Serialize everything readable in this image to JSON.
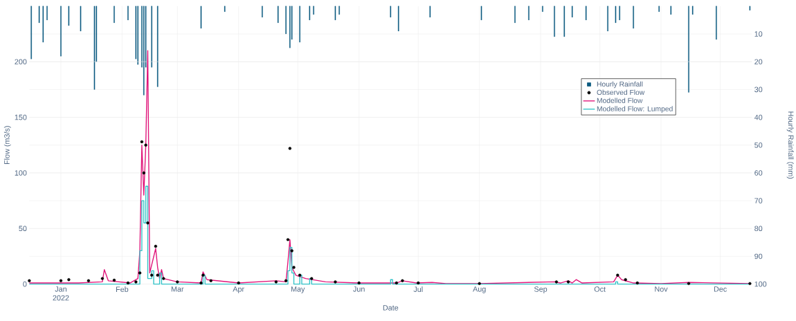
{
  "chart_data": {
    "type": "line",
    "xlabel": "Date",
    "ylabel": "Flow (m3/s)",
    "y2label": "Hourly Rainfall (mm)",
    "xlim": [
      "2021-12-16",
      "2022-12-17"
    ],
    "xticks": [
      {
        "value": "2022-01-01",
        "label": "Jan 2022"
      },
      {
        "value": "2022-02-01",
        "label": "Feb"
      },
      {
        "value": "2022-03-01",
        "label": "Mar"
      },
      {
        "value": "2022-04-01",
        "label": "Apr"
      },
      {
        "value": "2022-05-01",
        "label": "May"
      },
      {
        "value": "2022-06-01",
        "label": "Jun"
      },
      {
        "value": "2022-07-01",
        "label": "Jul"
      },
      {
        "value": "2022-08-01",
        "label": "Aug"
      },
      {
        "value": "2022-09-01",
        "label": "Sep"
      },
      {
        "value": "2022-10-01",
        "label": "Oct"
      },
      {
        "value": "2022-11-01",
        "label": "Nov"
      },
      {
        "value": "2022-12-01",
        "label": "Dec"
      }
    ],
    "ylim": [
      0,
      250
    ],
    "yticks": [
      0,
      50,
      100,
      150,
      200
    ],
    "y2lim": [
      100,
      0
    ],
    "y2ticks": [
      10,
      20,
      30,
      40,
      50,
      60,
      70,
      80,
      90,
      100
    ],
    "grid": true,
    "legend": "right",
    "series": [
      {
        "name": "Hourly Rainfall",
        "type": "bar",
        "axis": "y2",
        "color": "#0b5a80",
        "x": [
          "2021-12-17",
          "2021-12-21",
          "2021-12-23",
          "2021-12-25",
          "2022-01-01",
          "2022-01-05",
          "2022-01-11",
          "2022-01-18",
          "2022-01-19",
          "2022-01-28",
          "2022-02-04",
          "2022-02-08",
          "2022-02-09",
          "2022-02-11",
          "2022-02-12",
          "2022-02-13",
          "2022-02-16",
          "2022-02-19",
          "2022-03-13",
          "2022-03-25",
          "2022-04-13",
          "2022-04-21",
          "2022-04-25",
          "2022-04-27",
          "2022-04-28",
          "2022-05-02",
          "2022-05-07",
          "2022-05-09",
          "2022-05-20",
          "2022-05-22",
          "2022-06-17",
          "2022-06-21",
          "2022-07-07",
          "2022-08-02",
          "2022-08-19",
          "2022-08-26",
          "2022-09-02",
          "2022-09-08",
          "2022-09-13",
          "2022-09-17",
          "2022-09-24",
          "2022-10-05",
          "2022-10-09",
          "2022-10-11",
          "2022-10-18",
          "2022-10-31",
          "2022-11-06",
          "2022-11-15",
          "2022-11-17",
          "2022-11-29",
          "2022-12-16"
        ],
        "values": [
          19,
          6,
          13,
          5,
          18,
          7,
          9,
          30,
          20,
          6,
          5,
          19,
          21,
          22,
          32,
          22,
          22,
          29,
          8,
          2,
          4,
          6,
          10,
          15,
          12,
          13,
          5,
          3,
          5,
          3,
          4,
          9,
          4,
          5,
          6,
          5,
          2,
          11,
          11,
          4,
          5,
          9,
          6,
          5,
          8,
          2,
          3,
          31,
          3,
          12,
          1.5
        ]
      },
      {
        "name": "Observed Flow",
        "type": "scatter",
        "color": "#000000",
        "x": [
          "2021-12-16",
          "2022-01-01",
          "2022-01-05",
          "2022-01-15",
          "2022-01-22",
          "2022-01-28",
          "2022-02-04",
          "2022-02-08",
          "2022-02-10",
          "2022-02-11",
          "2022-02-12",
          "2022-02-13",
          "2022-02-14",
          "2022-02-16",
          "2022-02-18",
          "2022-02-19",
          "2022-02-22",
          "2022-03-01",
          "2022-03-13",
          "2022-03-14",
          "2022-03-18",
          "2022-04-01",
          "2022-04-20",
          "2022-04-25",
          "2022-04-26",
          "2022-04-27",
          "2022-04-28",
          "2022-04-29",
          "2022-05-02",
          "2022-05-08",
          "2022-05-20",
          "2022-06-01",
          "2022-06-20",
          "2022-06-23",
          "2022-07-01",
          "2022-08-01",
          "2022-09-09",
          "2022-09-15",
          "2022-10-10",
          "2022-10-14",
          "2022-10-20",
          "2022-11-15",
          "2022-12-16"
        ],
        "values": [
          3,
          3,
          4,
          3,
          5,
          3.5,
          1,
          2,
          10,
          128,
          100,
          125,
          55,
          8,
          34,
          8,
          5,
          2,
          1,
          8,
          3,
          1,
          2,
          3,
          40,
          122,
          30,
          15,
          8,
          5,
          2,
          1,
          1,
          3,
          1,
          0.5,
          2,
          2,
          8,
          4,
          1,
          0.5,
          0.5
        ]
      },
      {
        "name": "Modelled Flow",
        "color": "#e0157a",
        "x": [
          "2021-12-16",
          "2022-01-10",
          "2022-01-22",
          "2022-01-23",
          "2022-01-25",
          "2022-02-05",
          "2022-02-07",
          "2022-02-09",
          "2022-02-10",
          "2022-02-11",
          "2022-02-12",
          "2022-02-13",
          "2022-02-14",
          "2022-02-15",
          "2022-02-18",
          "2022-02-19",
          "2022-02-20",
          "2022-02-21",
          "2022-02-22",
          "2022-03-01",
          "2022-03-13",
          "2022-03-14",
          "2022-03-16",
          "2022-04-01",
          "2022-04-20",
          "2022-04-25",
          "2022-04-26",
          "2022-04-27",
          "2022-04-28",
          "2022-04-30",
          "2022-05-05",
          "2022-05-15",
          "2022-06-01",
          "2022-06-20",
          "2022-06-23",
          "2022-06-30",
          "2022-07-08",
          "2022-07-15",
          "2022-08-01",
          "2022-09-08",
          "2022-09-11",
          "2022-09-15",
          "2022-09-17",
          "2022-09-19",
          "2022-09-22",
          "2022-10-08",
          "2022-10-10",
          "2022-10-12",
          "2022-10-18",
          "2022-11-01",
          "2022-11-15",
          "2022-12-16"
        ],
        "values": [
          1,
          1,
          2,
          13,
          3,
          1,
          3,
          5,
          30,
          125,
          80,
          125,
          210,
          10,
          32,
          15,
          5,
          13,
          5,
          2,
          1,
          11,
          4,
          1,
          3,
          2,
          20,
          40,
          15,
          8,
          5,
          2,
          1,
          1,
          3,
          1,
          1.5,
          0.5,
          0.5,
          2,
          1,
          3,
          1,
          4,
          1,
          2,
          8,
          4,
          1,
          0.5,
          1.5,
          0.5
        ]
      },
      {
        "name": "Modelled Flow: Lumped",
        "type": "step",
        "color": "#33c3c8",
        "x": [
          "2021-12-16",
          "2022-02-09",
          "2022-02-10",
          "2022-02-11",
          "2022-02-12",
          "2022-02-13",
          "2022-02-14",
          "2022-02-16",
          "2022-02-17",
          "2022-02-20",
          "2022-02-21",
          "2022-03-14",
          "2022-03-15",
          "2022-04-26",
          "2022-04-27",
          "2022-04-28",
          "2022-04-29",
          "2022-05-02",
          "2022-05-03",
          "2022-05-07",
          "2022-05-08",
          "2022-06-17",
          "2022-06-18",
          "2022-10-09",
          "2022-10-10",
          "2022-12-16"
        ],
        "values": [
          0,
          0,
          30,
          75,
          55,
          88,
          5,
          12,
          0,
          10,
          0,
          8,
          0,
          12,
          33,
          10,
          0,
          8,
          0,
          5,
          0,
          4,
          0,
          2,
          0,
          0
        ]
      }
    ]
  }
}
